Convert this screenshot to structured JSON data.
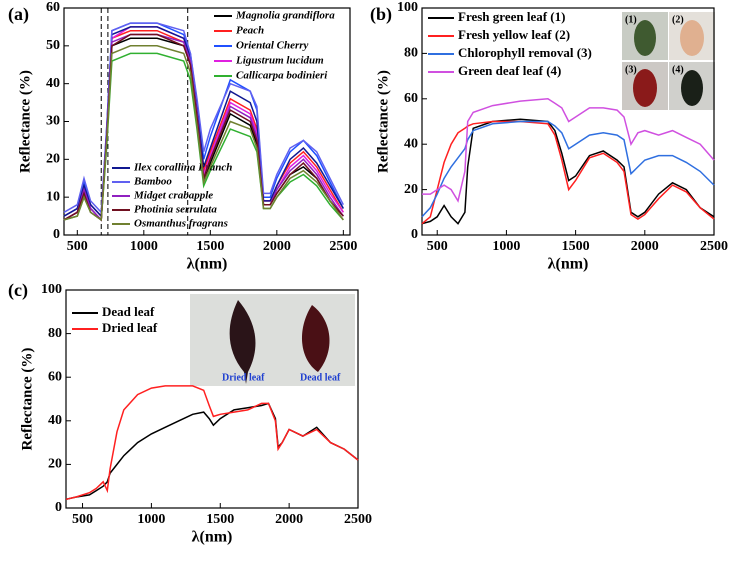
{
  "chart_data": [
    {
      "type": "line",
      "panel_label": "(a)",
      "xlabel": "λ(nm)",
      "ylabel": "Reflectance (%)",
      "xlim": [
        400,
        2550
      ],
      "xticks": [
        500,
        1000,
        1500,
        2000,
        2500
      ],
      "ylim": [
        0,
        60
      ],
      "yticks": [
        0,
        10,
        20,
        30,
        40,
        50,
        60
      ],
      "reference_lines": [
        680,
        730,
        1330
      ],
      "x": [
        400,
        500,
        550,
        600,
        680,
        720,
        760,
        900,
        1100,
        1300,
        1350,
        1400,
        1450,
        1500,
        1650,
        1800,
        1850,
        1900,
        1950,
        2000,
        2100,
        2200,
        2300,
        2400,
        2500
      ],
      "series": [
        {
          "name": "Magnolia grandiflora",
          "color": "#000000",
          "values": [
            4,
            6,
            11,
            7,
            4,
            25,
            50,
            52,
            52,
            50,
            45,
            30,
            14,
            19,
            32,
            29,
            24,
            8,
            8,
            11,
            16,
            18,
            15,
            9,
            5
          ]
        },
        {
          "name": "Peach",
          "color": "#ff2020",
          "values": [
            5,
            7,
            13,
            8,
            5,
            27,
            52,
            54,
            54,
            51,
            46,
            32,
            17,
            22,
            36,
            33,
            28,
            9,
            9,
            13,
            19,
            22,
            18,
            12,
            6
          ]
        },
        {
          "name": "Oriental Cherry",
          "color": "#2050ff",
          "values": [
            5,
            7,
            14,
            8,
            5,
            28,
            54,
            56,
            56,
            53,
            48,
            35,
            20,
            26,
            41,
            38,
            33,
            10,
            10,
            15,
            22,
            25,
            21,
            14,
            7
          ]
        },
        {
          "name": "Ligustrum lucidum",
          "color": "#e020e0",
          "values": [
            4,
            6,
            12,
            7,
            4,
            26,
            52,
            55,
            55,
            52,
            47,
            33,
            16,
            21,
            35,
            32,
            27,
            9,
            9,
            12,
            18,
            21,
            17,
            11,
            6
          ]
        },
        {
          "name": "Callicarpa bodinieri",
          "color": "#30b030",
          "values": [
            4,
            5,
            10,
            6,
            4,
            23,
            46,
            48,
            48,
            46,
            41,
            28,
            13,
            17,
            28,
            26,
            22,
            7,
            7,
            10,
            14,
            16,
            13,
            8,
            4
          ]
        },
        {
          "name": "Ilex corallina Franch",
          "color": "#101890",
          "values": [
            5,
            7,
            13,
            8,
            5,
            27,
            53,
            55,
            55,
            52,
            47,
            33,
            18,
            23,
            38,
            35,
            30,
            9,
            9,
            13,
            20,
            23,
            19,
            13,
            7
          ]
        },
        {
          "name": "Bamboo",
          "color": "#6060f0",
          "values": [
            6,
            8,
            15,
            9,
            6,
            28,
            54,
            56,
            56,
            54,
            48,
            36,
            22,
            28,
            40,
            38,
            34,
            11,
            11,
            16,
            23,
            25,
            22,
            15,
            8
          ]
        },
        {
          "name": "Midget crabapple",
          "color": "#9020c0",
          "values": [
            4,
            6,
            12,
            7,
            4,
            26,
            51,
            53,
            53,
            51,
            46,
            32,
            15,
            20,
            34,
            31,
            26,
            8,
            8,
            12,
            17,
            20,
            16,
            10,
            5
          ]
        },
        {
          "name": "Photinia serrulata",
          "color": "#701020",
          "values": [
            4,
            6,
            11,
            6,
            4,
            25,
            50,
            53,
            53,
            50,
            45,
            31,
            15,
            20,
            33,
            30,
            25,
            8,
            8,
            11,
            16,
            19,
            15,
            9,
            5
          ]
        },
        {
          "name": "Osmanthus fragrans",
          "color": "#708030",
          "values": [
            4,
            5,
            10,
            6,
            4,
            24,
            48,
            50,
            50,
            48,
            43,
            29,
            14,
            18,
            30,
            28,
            23,
            7,
            7,
            10,
            15,
            17,
            14,
            9,
            4
          ]
        }
      ]
    },
    {
      "type": "line",
      "panel_label": "(b)",
      "xlabel": "λ(nm)",
      "ylabel": "Reflectance (%)",
      "xlim": [
        390,
        2500
      ],
      "xticks": [
        500,
        1000,
        1500,
        2000,
        2500
      ],
      "ylim": [
        0,
        100
      ],
      "yticks": [
        0,
        20,
        40,
        60,
        80,
        100
      ],
      "inset_labels": [
        "(1)",
        "(2)",
        "(3)",
        "(4)"
      ],
      "x": [
        390,
        450,
        500,
        550,
        600,
        650,
        700,
        720,
        760,
        900,
        1100,
        1300,
        1350,
        1400,
        1450,
        1500,
        1600,
        1700,
        1800,
        1850,
        1900,
        1950,
        2000,
        2100,
        2200,
        2300,
        2400,
        2500
      ],
      "series": [
        {
          "name": "Fresh green leaf (1)",
          "color": "#000000",
          "values": [
            5,
            6,
            8,
            13,
            8,
            5,
            10,
            30,
            47,
            50,
            51,
            50,
            46,
            36,
            24,
            26,
            35,
            37,
            33,
            30,
            10,
            8,
            10,
            18,
            23,
            20,
            12,
            8
          ]
        },
        {
          "name": "Fresh yellow leaf (2)",
          "color": "#ff2020",
          "values": [
            5,
            8,
            20,
            32,
            40,
            45,
            47,
            48,
            49,
            50,
            50,
            49,
            44,
            33,
            20,
            24,
            34,
            36,
            32,
            28,
            9,
            7,
            9,
            16,
            22,
            19,
            12,
            7
          ]
        },
        {
          "name": "Chlorophyll removal (3)",
          "color": "#2f6fe0",
          "values": [
            8,
            12,
            18,
            25,
            30,
            34,
            38,
            42,
            46,
            49,
            50,
            50,
            48,
            45,
            38,
            40,
            44,
            45,
            44,
            42,
            27,
            30,
            33,
            35,
            35,
            32,
            28,
            22
          ]
        },
        {
          "name": "Green deaf leaf (4)",
          "color": "#d050e0",
          "values": [
            18,
            18,
            20,
            22,
            20,
            15,
            28,
            50,
            54,
            57,
            59,
            60,
            58,
            56,
            50,
            52,
            56,
            56,
            55,
            52,
            40,
            45,
            46,
            44,
            46,
            43,
            40,
            33
          ]
        }
      ]
    },
    {
      "type": "line",
      "panel_label": "(c)",
      "xlabel": "λ(nm)",
      "ylabel": "Reflectance (%)",
      "xlim": [
        380,
        2500
      ],
      "xticks": [
        500,
        1000,
        1500,
        2000,
        2500
      ],
      "ylim": [
        0,
        100
      ],
      "yticks": [
        0,
        20,
        40,
        60,
        80,
        100
      ],
      "inset_labels": [
        "Dried leaf",
        "Dead leaf"
      ],
      "x": [
        380,
        450,
        550,
        600,
        650,
        680,
        700,
        750,
        800,
        900,
        1000,
        1100,
        1200,
        1300,
        1380,
        1420,
        1450,
        1500,
        1600,
        1700,
        1800,
        1850,
        1900,
        1920,
        1950,
        2000,
        2100,
        2200,
        2300,
        2400,
        2500
      ],
      "series": [
        {
          "name": "Dead leaf",
          "color": "#000000",
          "values": [
            4,
            5,
            6,
            8,
            10,
            12,
            16,
            20,
            24,
            30,
            34,
            37,
            40,
            43,
            44,
            41,
            38,
            41,
            45,
            46,
            47,
            48,
            41,
            28,
            30,
            36,
            33,
            37,
            30,
            27,
            22
          ]
        },
        {
          "name": "Dried leaf",
          "color": "#ff2020",
          "values": [
            4,
            5,
            7,
            9,
            12,
            8,
            18,
            35,
            45,
            52,
            55,
            56,
            56,
            56,
            54,
            47,
            42,
            43,
            44,
            45,
            48,
            48,
            40,
            27,
            30,
            36,
            33,
            36,
            30,
            27,
            22
          ]
        }
      ]
    }
  ]
}
